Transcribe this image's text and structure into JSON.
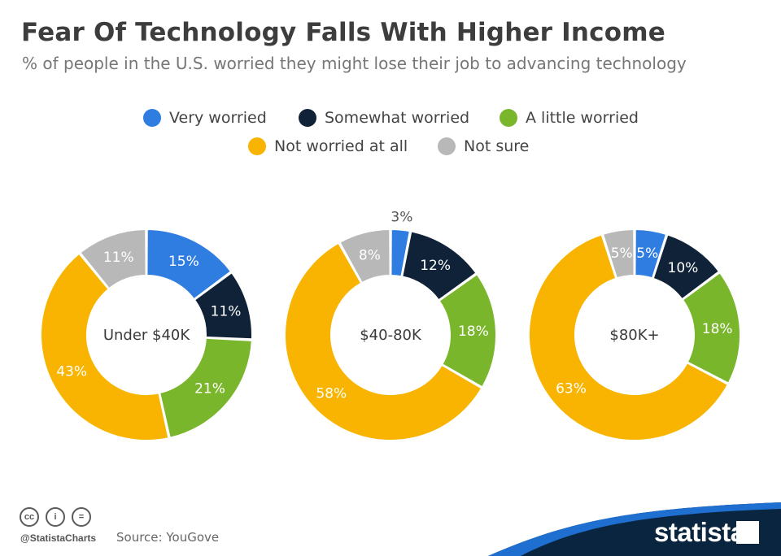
{
  "header": {
    "title": "Fear Of Technology Falls With Higher Income",
    "subtitle": "% of people in the U.S. worried they might lose their job to advancing technology"
  },
  "legend": [
    {
      "label": "Very worried",
      "color": "#2f7de1"
    },
    {
      "label": "Somewhat worried",
      "color": "#0f2237"
    },
    {
      "label": "A little worried",
      "color": "#7ab62c"
    },
    {
      "label": "Not worried at all",
      "color": "#f8b400"
    },
    {
      "label": "Not sure",
      "color": "#b8b8b8"
    }
  ],
  "chart_data": {
    "type": "pie",
    "variant": "donut",
    "unit": "%",
    "series_names": [
      "Very worried",
      "Somewhat worried",
      "A little worried",
      "Not worried at all",
      "Not sure"
    ],
    "charts": [
      {
        "label": "Under $40K",
        "values": [
          15,
          11,
          21,
          43,
          11
        ],
        "labels": [
          "15%",
          "11%",
          "21%",
          "43%",
          "11%"
        ]
      },
      {
        "label": "$40-80K",
        "values": [
          3,
          12,
          18,
          58,
          8
        ],
        "labels": [
          "3%",
          "12%",
          "18%",
          "58%",
          "8%"
        ]
      },
      {
        "label": "$80K+",
        "values": [
          5,
          10,
          18,
          63,
          5
        ],
        "labels": [
          "5%",
          "10%",
          "18%",
          "63%",
          "5%"
        ]
      }
    ],
    "legend_position": "top"
  },
  "footer": {
    "cc_icons": [
      "cc-icon",
      "person-icon",
      "equals-icon"
    ],
    "cc_glyphs": [
      "cc",
      "i",
      "="
    ],
    "handle": "@StatistaCharts",
    "source": "Source: YouGove",
    "brand": "statista",
    "brand_color": "#0a2540",
    "accent_color": "#1f6fd0"
  }
}
